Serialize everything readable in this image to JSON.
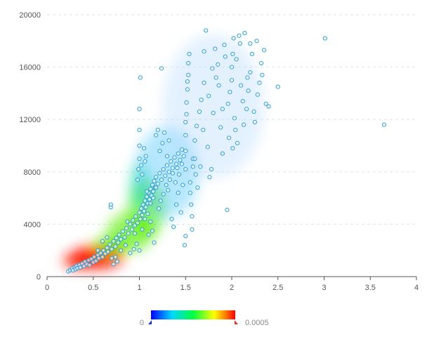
{
  "chart_data": {
    "type": "scatter",
    "overlay": "heatmap-density",
    "title": "",
    "xlabel": "",
    "ylabel": "",
    "xlim": [
      0,
      4
    ],
    "ylim": [
      0,
      20000
    ],
    "x_ticks": [
      0,
      0.5,
      1,
      1.5,
      2,
      2.5,
      3,
      3.5,
      4
    ],
    "x_tick_labels": [
      "0",
      "0.5",
      "1",
      "1.5",
      "2",
      "2.5",
      "3",
      "3.5",
      "4"
    ],
    "y_ticks": [
      0,
      4000,
      8000,
      12000,
      16000,
      20000
    ],
    "y_tick_labels": [
      "0",
      "4000",
      "8000",
      "12000",
      "16000",
      "20000"
    ],
    "grid": "horizontal-dashed",
    "point_color": "#2f9ed8",
    "heat_colors": [
      "#0000ff",
      "#00d8ff",
      "#00ff40",
      "#ffff00",
      "#ff8000",
      "#ff0000"
    ],
    "density_legend": {
      "min_label": "0",
      "max_label": "0.0005",
      "placement": "bottom-center"
    },
    "points": [
      [
        0.23,
        400
      ],
      [
        0.25,
        500
      ],
      [
        0.27,
        620
      ],
      [
        0.28,
        480
      ],
      [
        0.3,
        700
      ],
      [
        0.31,
        560
      ],
      [
        0.32,
        820
      ],
      [
        0.33,
        650
      ],
      [
        0.35,
        900
      ],
      [
        0.36,
        700
      ],
      [
        0.38,
        1000
      ],
      [
        0.4,
        800
      ],
      [
        0.41,
        1150
      ],
      [
        0.43,
        950
      ],
      [
        0.45,
        1250
      ],
      [
        0.46,
        880
      ],
      [
        0.48,
        1350
      ],
      [
        0.5,
        1100
      ],
      [
        0.51,
        1500
      ],
      [
        0.53,
        1200
      ],
      [
        0.55,
        1650
      ],
      [
        0.56,
        1400
      ],
      [
        0.58,
        1800
      ],
      [
        0.6,
        1500
      ],
      [
        0.61,
        2000
      ],
      [
        0.63,
        1750
      ],
      [
        0.65,
        2200
      ],
      [
        0.66,
        1900
      ],
      [
        0.68,
        2450
      ],
      [
        0.7,
        2100
      ],
      [
        0.72,
        2700
      ],
      [
        0.74,
        2300
      ],
      [
        0.75,
        2950
      ],
      [
        0.77,
        2600
      ],
      [
        0.78,
        3200
      ],
      [
        0.8,
        2850
      ],
      [
        0.82,
        3450
      ],
      [
        0.84,
        3000
      ],
      [
        0.86,
        3700
      ],
      [
        0.88,
        3300
      ],
      [
        0.9,
        4000
      ],
      [
        0.92,
        3600
      ],
      [
        0.93,
        4300
      ],
      [
        0.95,
        3900
      ],
      [
        0.96,
        4600
      ],
      [
        0.98,
        4100
      ],
      [
        1.0,
        4900
      ],
      [
        1.01,
        4400
      ],
      [
        1.02,
        5200
      ],
      [
        1.03,
        4700
      ],
      [
        1.04,
        5500
      ],
      [
        1.05,
        5000
      ],
      [
        1.06,
        5800
      ],
      [
        1.07,
        5300
      ],
      [
        1.08,
        6100
      ],
      [
        1.09,
        5600
      ],
      [
        1.1,
        6400
      ],
      [
        1.11,
        5900
      ],
      [
        1.12,
        6700
      ],
      [
        1.13,
        6200
      ],
      [
        1.14,
        7000
      ],
      [
        1.15,
        6500
      ],
      [
        1.16,
        7300
      ],
      [
        1.17,
        6800
      ],
      [
        1.18,
        7600
      ],
      [
        1.2,
        7100
      ],
      [
        1.22,
        7900
      ],
      [
        1.24,
        7400
      ],
      [
        1.26,
        8200
      ],
      [
        1.28,
        7700
      ],
      [
        1.3,
        8500
      ],
      [
        1.32,
        8000
      ],
      [
        1.34,
        8800
      ],
      [
        1.36,
        8300
      ],
      [
        1.38,
        9100
      ],
      [
        1.4,
        8600
      ],
      [
        1.42,
        9400
      ],
      [
        1.44,
        8900
      ],
      [
        1.46,
        9700
      ],
      [
        1.48,
        9200
      ],
      [
        0.69,
        5300
      ],
      [
        0.69,
        5500
      ],
      [
        0.7,
        1400
      ],
      [
        0.72,
        950
      ],
      [
        0.74,
        1500
      ],
      [
        0.76,
        1150
      ],
      [
        0.9,
        1800
      ],
      [
        0.94,
        2100
      ],
      [
        0.97,
        2500
      ],
      [
        1.0,
        2000
      ],
      [
        1.0,
        9000
      ],
      [
        1.0,
        10000
      ],
      [
        1.0,
        11200
      ],
      [
        1.0,
        12800
      ],
      [
        1.01,
        15200
      ],
      [
        1.02,
        8500
      ],
      [
        1.03,
        7800
      ],
      [
        1.05,
        9800
      ],
      [
        1.06,
        8800
      ],
      [
        1.08,
        6500
      ],
      [
        1.1,
        3200
      ],
      [
        1.12,
        4200
      ],
      [
        1.14,
        3500
      ],
      [
        1.16,
        2600
      ],
      [
        1.18,
        10800
      ],
      [
        1.2,
        11200
      ],
      [
        1.22,
        9600
      ],
      [
        1.24,
        15900
      ],
      [
        1.25,
        10200
      ],
      [
        1.27,
        11000
      ],
      [
        1.3,
        9200
      ],
      [
        1.32,
        10400
      ],
      [
        1.35,
        4400
      ],
      [
        1.37,
        3800
      ],
      [
        1.4,
        5500
      ],
      [
        1.42,
        6400
      ],
      [
        1.45,
        4900
      ],
      [
        1.47,
        7000
      ],
      [
        1.49,
        2400
      ],
      [
        1.5,
        3100
      ],
      [
        1.5,
        8200
      ],
      [
        1.5,
        9600
      ],
      [
        1.5,
        10800
      ],
      [
        1.5,
        11800
      ],
      [
        1.51,
        12400
      ],
      [
        1.51,
        13300
      ],
      [
        1.52,
        14300
      ],
      [
        1.52,
        14900
      ],
      [
        1.53,
        15400
      ],
      [
        1.53,
        16300
      ],
      [
        1.54,
        17000
      ],
      [
        1.55,
        7200
      ],
      [
        1.55,
        6400
      ],
      [
        1.56,
        5500
      ],
      [
        1.57,
        4600
      ],
      [
        1.57,
        3600
      ],
      [
        1.58,
        9000
      ],
      [
        1.6,
        10400
      ],
      [
        1.62,
        11500
      ],
      [
        1.65,
        12600
      ],
      [
        1.67,
        13500
      ],
      [
        1.7,
        14800
      ],
      [
        1.7,
        17200
      ],
      [
        1.72,
        18800
      ],
      [
        1.74,
        9900
      ],
      [
        1.76,
        7600
      ],
      [
        1.78,
        8200
      ],
      [
        1.8,
        12500
      ],
      [
        1.83,
        15200
      ],
      [
        1.85,
        16200
      ],
      [
        1.88,
        11400
      ],
      [
        1.9,
        9400
      ],
      [
        1.92,
        17700
      ],
      [
        1.95,
        5100
      ],
      [
        1.96,
        13200
      ],
      [
        1.98,
        14100
      ],
      [
        2.0,
        15000
      ],
      [
        2.0,
        16000
      ],
      [
        2.01,
        17000
      ],
      [
        2.02,
        18200
      ],
      [
        2.03,
        12100
      ],
      [
        2.04,
        11200
      ],
      [
        2.06,
        10200
      ],
      [
        2.08,
        18400
      ],
      [
        2.1,
        14600
      ],
      [
        2.12,
        13400
      ],
      [
        2.14,
        18600
      ],
      [
        2.16,
        12800
      ],
      [
        2.18,
        14200
      ],
      [
        2.2,
        15600
      ],
      [
        2.22,
        17000
      ],
      [
        2.25,
        11800
      ],
      [
        2.28,
        13900
      ],
      [
        2.3,
        14800
      ],
      [
        2.32,
        16300
      ],
      [
        2.35,
        17300
      ],
      [
        2.4,
        13000
      ],
      [
        2.5,
        14500
      ],
      [
        3.01,
        18200
      ],
      [
        3.65,
        11600
      ],
      [
        0.55,
        2000
      ],
      [
        0.6,
        2700
      ],
      [
        0.65,
        3000
      ],
      [
        0.8,
        2000
      ],
      [
        0.85,
        2400
      ],
      [
        0.87,
        4200
      ],
      [
        0.95,
        3300
      ],
      [
        1.03,
        3600
      ],
      [
        1.06,
        4400
      ],
      [
        1.09,
        4800
      ],
      [
        1.12,
        5600
      ],
      [
        1.15,
        6000
      ],
      [
        1.18,
        6800
      ],
      [
        1.21,
        5200
      ],
      [
        1.23,
        5800
      ],
      [
        1.26,
        6300
      ],
      [
        1.29,
        7000
      ],
      [
        1.31,
        6600
      ],
      [
        1.33,
        7400
      ],
      [
        1.36,
        7900
      ],
      [
        1.39,
        7200
      ],
      [
        1.41,
        8300
      ],
      [
        1.43,
        7800
      ],
      [
        1.46,
        8600
      ],
      [
        1.58,
        8400
      ],
      [
        1.6,
        9000
      ],
      [
        1.61,
        7800
      ],
      [
        1.63,
        6800
      ],
      [
        1.66,
        8400
      ],
      [
        1.69,
        11200
      ],
      [
        1.75,
        13800
      ],
      [
        1.79,
        15900
      ],
      [
        1.82,
        17400
      ],
      [
        1.86,
        14600
      ],
      [
        1.9,
        12800
      ],
      [
        1.93,
        16800
      ],
      [
        1.97,
        10600
      ],
      [
        2.01,
        9800
      ],
      [
        2.05,
        16600
      ],
      [
        2.09,
        17800
      ],
      [
        2.13,
        11600
      ],
      [
        2.17,
        15200
      ],
      [
        2.2,
        17800
      ],
      [
        2.24,
        12600
      ],
      [
        2.27,
        18000
      ],
      [
        2.33,
        15400
      ],
      [
        2.37,
        13200
      ],
      [
        0.98,
        7400
      ],
      [
        0.99,
        8200
      ],
      [
        1.07,
        9200
      ]
    ],
    "density_blobs": [
      {
        "x": 0.4,
        "y": 1250,
        "rx": 0.22,
        "ry": 650,
        "intensity": 1.0
      },
      {
        "x": 0.55,
        "y": 1500,
        "rx": 0.28,
        "ry": 900,
        "intensity": 0.9
      },
      {
        "x": 0.7,
        "y": 2400,
        "rx": 0.2,
        "ry": 700,
        "intensity": 0.55
      },
      {
        "x": 0.9,
        "y": 3400,
        "rx": 0.25,
        "ry": 1500,
        "intensity": 0.45
      },
      {
        "x": 1.08,
        "y": 5200,
        "rx": 0.2,
        "ry": 2200,
        "intensity": 0.5
      },
      {
        "x": 1.0,
        "y": 7000,
        "rx": 0.1,
        "ry": 1800,
        "intensity": 0.3
      },
      {
        "x": 1.3,
        "y": 8000,
        "rx": 0.35,
        "ry": 3500,
        "intensity": 0.14
      },
      {
        "x": 1.8,
        "y": 13000,
        "rx": 0.55,
        "ry": 5500,
        "intensity": 0.07
      }
    ]
  }
}
